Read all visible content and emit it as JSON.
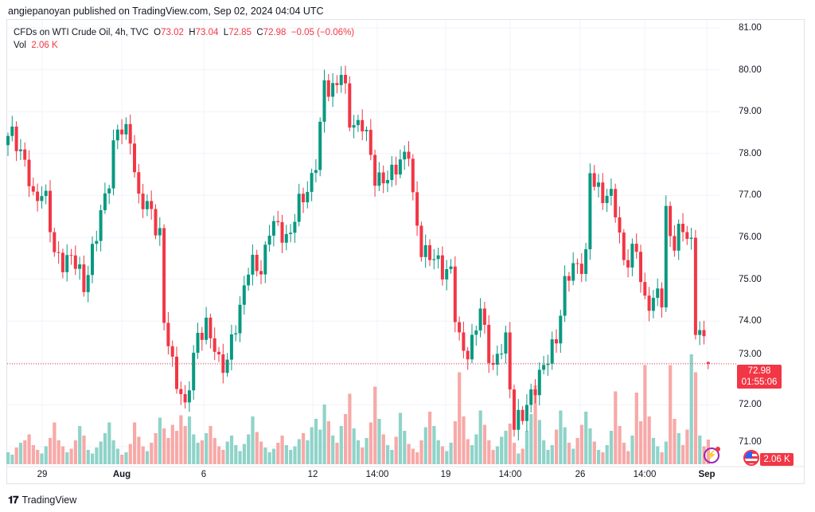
{
  "header": {
    "published": "angiepanoyan published on TradingView.com, Sep 02, 2024 04:04 UTC"
  },
  "legend": {
    "symbol": "CFDs on WTI Crude Oil, 4h, TVC",
    "o_label": "O",
    "o": "73.02",
    "h_label": "H",
    "h": "73.04",
    "l_label": "L",
    "l": "72.85",
    "c_label": "C",
    "c": "72.98",
    "change": "−0.05 (−0.06%)",
    "vol_label": "Vol",
    "vol": "2.06 K"
  },
  "price_axis": [
    "81.00",
    "80.00",
    "79.00",
    "78.00",
    "77.00",
    "76.00",
    "75.00",
    "74.00",
    "73.00",
    "72.00",
    "71.00"
  ],
  "time_axis": [
    "29",
    "Aug",
    "6",
    "12",
    "14:00",
    "19",
    "14:00",
    "26",
    "14:00",
    "Sep"
  ],
  "last_price": {
    "price": "72.98",
    "countdown": "01:55:06",
    "volume": "2.06 K"
  },
  "footer": {
    "brand": "TradingView"
  },
  "colors": {
    "up": "#089981",
    "down": "#f23645",
    "vol_up": "#8fd3c9",
    "vol_down": "#f7a9a7"
  },
  "chart_data": {
    "type": "candlestick",
    "title": "CFDs on WTI Crude Oil, 4h, TVC",
    "ylim": [
      71,
      81
    ],
    "close_path": [
      [
        0,
        78.3
      ],
      [
        1.5,
        78.5
      ],
      [
        4,
        77.8
      ],
      [
        6,
        76.8
      ],
      [
        8.5,
        77.3
      ],
      [
        11,
        75.5
      ],
      [
        15,
        75.5
      ],
      [
        18,
        74.9
      ],
      [
        21,
        76.0
      ],
      [
        24,
        77.5
      ],
      [
        25.5,
        78.5
      ],
      [
        29,
        78.5
      ],
      [
        31,
        76.8
      ],
      [
        34,
        76.7
      ],
      [
        36,
        76.0
      ],
      [
        37,
        73.9
      ],
      [
        39,
        73.0
      ],
      [
        40.5,
        72.5
      ],
      [
        42,
        71.8
      ],
      [
        43.5,
        72.8
      ],
      [
        45,
        73.8
      ],
      [
        47,
        73.8
      ],
      [
        50,
        73.1
      ],
      [
        52,
        73.0
      ],
      [
        55,
        74.3
      ],
      [
        56.5,
        75.3
      ],
      [
        60,
        75.2
      ],
      [
        62,
        76.3
      ],
      [
        66,
        76.0
      ],
      [
        69,
        76.7
      ],
      [
        71.5,
        77.3
      ],
      [
        73.5,
        78.0
      ],
      [
        75,
        79.6
      ],
      [
        77,
        79.6
      ],
      [
        79,
        79.9
      ],
      [
        81,
        78.8
      ],
      [
        84,
        78.7
      ],
      [
        87,
        77.5
      ],
      [
        90.5,
        77.3
      ],
      [
        92.5,
        77.9
      ],
      [
        95,
        78.0
      ],
      [
        96,
        76.8
      ],
      [
        98,
        75.8
      ],
      [
        101,
        75.4
      ],
      [
        105,
        75.2
      ],
      [
        106.5,
        73.5
      ],
      [
        109.5,
        73.3
      ],
      [
        112,
        74.2
      ],
      [
        115,
        72.9
      ],
      [
        118,
        73.5
      ],
      [
        120,
        71.6
      ],
      [
        122.5,
        71.7
      ],
      [
        124.5,
        72.5
      ],
      [
        127.5,
        72.9
      ],
      [
        130,
        73.7
      ],
      [
        132,
        74.8
      ],
      [
        134,
        75.3
      ],
      [
        137,
        75.5
      ],
      [
        137.5,
        77.5
      ],
      [
        140.5,
        77.1
      ],
      [
        142.5,
        77.0
      ],
      [
        144,
        76.6
      ],
      [
        146,
        75.5
      ],
      [
        149,
        75.6
      ],
      [
        151,
        74.5
      ],
      [
        155,
        74.5
      ],
      [
        156,
        76.7
      ],
      [
        157.5,
        75.8
      ],
      [
        160.5,
        76.2
      ],
      [
        162.5,
        75.8
      ],
      [
        163,
        73.9
      ],
      [
        165,
        73.4
      ],
      [
        166,
        72.98
      ]
    ],
    "last_candle": {
      "o": 73.02,
      "h": 73.04,
      "l": 72.85,
      "c": 72.98
    },
    "volume_k": [
      1.0,
      0.8,
      1.4,
      1.8,
      2.0,
      2.5,
      1.6,
      1.2,
      0.9,
      1.5,
      2.2,
      3.5,
      2.0,
      1.5,
      1.0,
      1.3,
      2.0,
      3.2,
      2.4,
      1.2,
      0.9,
      1.4,
      1.9,
      2.6,
      3.5,
      2.0,
      1.3,
      0.8,
      1.0,
      1.7,
      3.5,
      2.3,
      1.5,
      1.1,
      1.8,
      2.6,
      3.9,
      3.0,
      2.2,
      3.3,
      2.8,
      4.1,
      3.2,
      4.0,
      2.5,
      1.8,
      2.0,
      2.6,
      3.2,
      2.2,
      1.5,
      1.2,
      1.9,
      2.4,
      1.6,
      1.1,
      1.7,
      2.5,
      4.0,
      2.7,
      1.9,
      1.4,
      1.0,
      1.3,
      1.8,
      2.4,
      1.6,
      1.2,
      1.5,
      2.1,
      2.6,
      2.0,
      3.1,
      3.8,
      2.9,
      5.0,
      3.6,
      2.4,
      1.8,
      3.2,
      4.2,
      5.9,
      3.0,
      2.0,
      1.4,
      2.2,
      3.5,
      6.5,
      3.8,
      2.5,
      1.6,
      1.2,
      2.3,
      4.3,
      2.8,
      1.7,
      1.3,
      1.0,
      2.0,
      3.1,
      4.4,
      3.2,
      2.0,
      1.5,
      1.1,
      1.8,
      3.6,
      7.7,
      4.0,
      2.1,
      1.6,
      2.5,
      4.5,
      3.3,
      2.0,
      1.2,
      1.5,
      2.3,
      2.8,
      3.4,
      1.8,
      0.9,
      1.3,
      2.8,
      4.2,
      6.6,
      3.7,
      2.0,
      1.2,
      1.6,
      2.9,
      4.5,
      3.1,
      1.8,
      1.3,
      2.2,
      3.3,
      4.4,
      3.0,
      1.9,
      1.2,
      1.0,
      1.6,
      2.8,
      6.1,
      3.2,
      1.8,
      1.1,
      2.4,
      6.0,
      3.6,
      8.3,
      4.0,
      2.2,
      1.5,
      1.0,
      1.9,
      8.3,
      3.8,
      2.6,
      1.6,
      2.9,
      9.2,
      7.7,
      2.4,
      1.5,
      2.06
    ]
  }
}
